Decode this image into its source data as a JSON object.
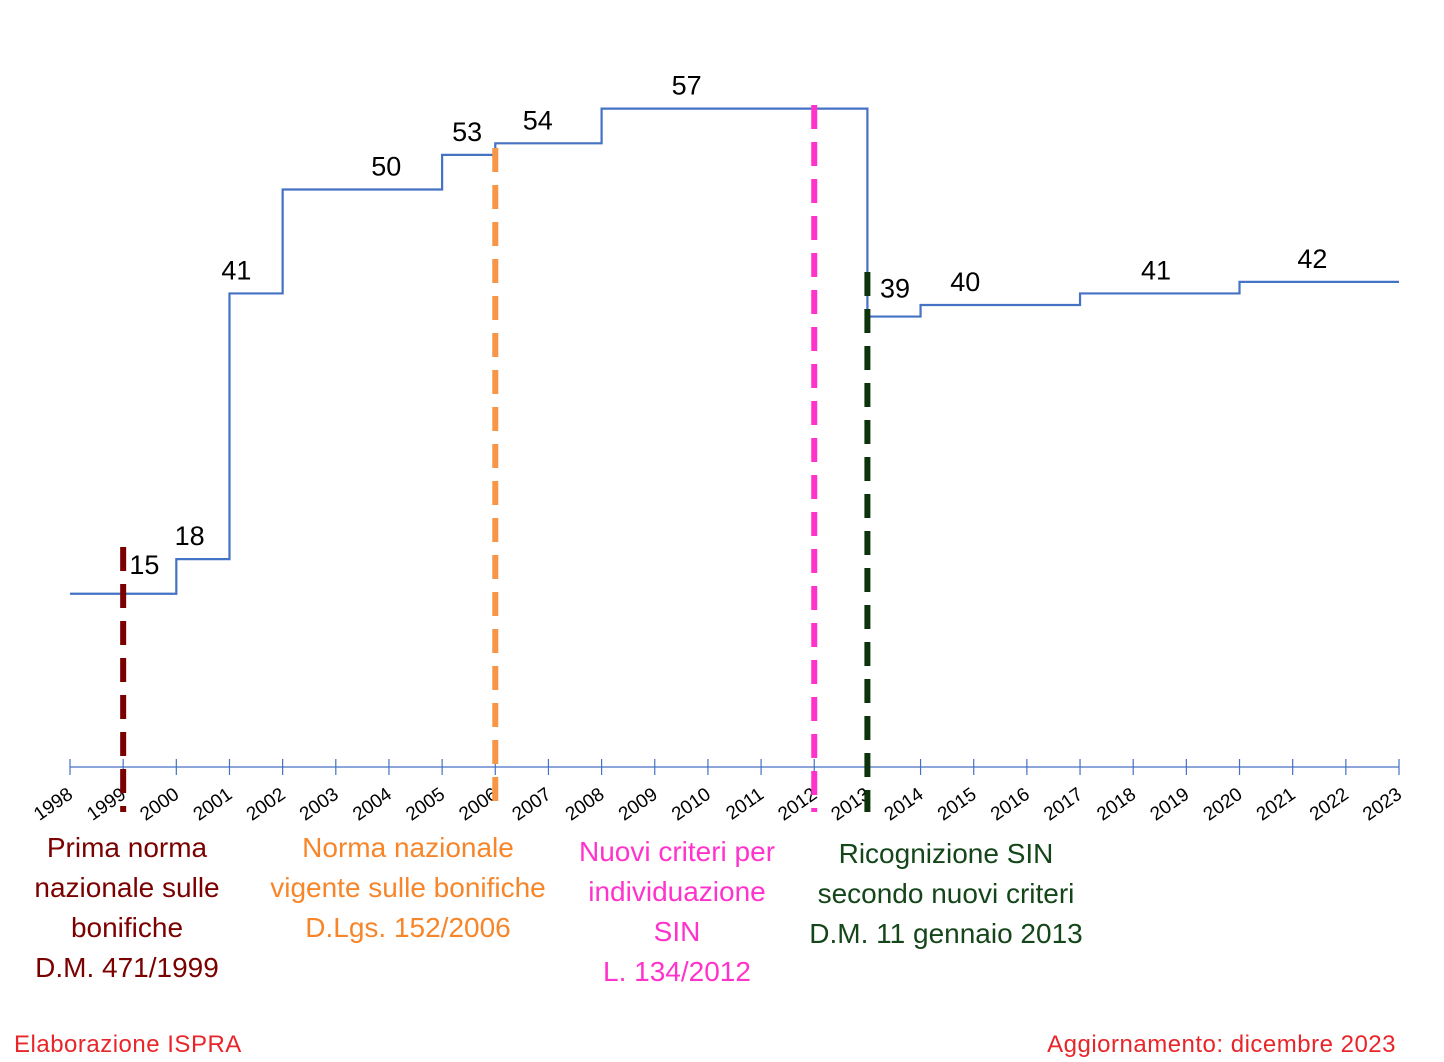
{
  "chart_data": {
    "type": "line",
    "step": true,
    "title": "",
    "xlabel": "",
    "ylabel": "",
    "x_ticks": [
      "1998",
      "1999",
      "2000",
      "2001",
      "2002",
      "2003",
      "2004",
      "2005",
      "2006",
      "2007",
      "2008",
      "2009",
      "2010",
      "2011",
      "2012",
      "2013",
      "2014",
      "2015",
      "2016",
      "2017",
      "2018",
      "2019",
      "2020",
      "2021",
      "2022",
      "2023"
    ],
    "xlim": [
      1998,
      2023
    ],
    "ylim": [
      0,
      65
    ],
    "grid": false,
    "line_color": "#4472c4",
    "steps": [
      {
        "from": 1998,
        "value": 15,
        "label": "15"
      },
      {
        "from": 2000,
        "value": 18,
        "label": "18"
      },
      {
        "from": 2001,
        "value": 41,
        "label": "41"
      },
      {
        "from": 2002,
        "value": 50,
        "label": "50"
      },
      {
        "from": 2005,
        "value": 53,
        "label": "53"
      },
      {
        "from": 2006,
        "value": 54,
        "label": "54"
      },
      {
        "from": 2008,
        "value": 57,
        "label": "57"
      },
      {
        "from": 2013,
        "value": 39,
        "label": "39"
      },
      {
        "from": 2014,
        "value": 40,
        "label": "40"
      },
      {
        "from": 2017,
        "value": 41,
        "label": "41"
      },
      {
        "from": 2020,
        "value": 42,
        "label": "42"
      }
    ],
    "markers": [
      {
        "year": 1999,
        "color": "#7b0000",
        "text_color": "#7b0000",
        "lines": [
          "Prima norma",
          "nazionale sulle",
          "bonifiche",
          "D.M. 471/1999"
        ]
      },
      {
        "year": 2006,
        "color": "#f79646",
        "text_color": "#f7862b",
        "lines": [
          "Norma nazionale",
          "vigente sulle bonifiche",
          "D.Lgs. 152/2006"
        ]
      },
      {
        "year": 2012,
        "color": "#ff33cc",
        "text_color": "#ff33cc",
        "lines": [
          "Nuovi criteri per",
          "individuazione",
          "SIN",
          "L. 134/2012"
        ]
      },
      {
        "year": 2013,
        "color": "#0d330d",
        "text_color": "#14461a",
        "lines": [
          "Ricognizione SIN",
          "secondo nuovi criteri",
          "D.M. 11 gennaio 2013"
        ]
      }
    ]
  },
  "footer": {
    "left": "Elaborazione  ISPRA",
    "right": "Aggiornamento: dicembre 2023"
  }
}
